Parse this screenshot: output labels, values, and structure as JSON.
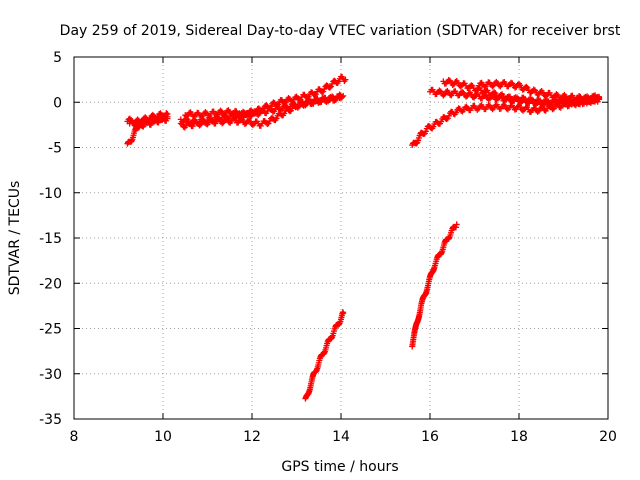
{
  "chart_data": {
    "type": "scatter",
    "title": "Day 259 of 2019, Sidereal Day-to-day VTEC variation (SDTVAR) for receiver brst",
    "xlabel": "GPS time / hours",
    "ylabel": "SDTVAR / TECUs",
    "xlim": [
      8,
      20
    ],
    "ylim": [
      -35,
      5
    ],
    "xticks": [
      8,
      10,
      12,
      14,
      16,
      18,
      20
    ],
    "yticks": [
      5,
      0,
      -5,
      -10,
      -15,
      -20,
      -25,
      -30,
      -35
    ],
    "grid": true,
    "marker": "+",
    "color": "#ff0000",
    "series": [
      {
        "points": [
          [
            9.2,
            -4.8
          ],
          [
            9.3,
            -4.0
          ],
          [
            9.4,
            -3.0
          ],
          [
            9.5,
            -2.2
          ],
          [
            9.7,
            -2.0
          ],
          [
            9.9,
            -1.8
          ],
          [
            10.1,
            -1.6
          ]
        ]
      },
      {
        "points": [
          [
            9.2,
            -2.0
          ],
          [
            9.4,
            -2.2
          ],
          [
            9.6,
            -1.9
          ],
          [
            9.8,
            -1.6
          ],
          [
            10.0,
            -1.4
          ],
          [
            10.1,
            -1.3
          ]
        ]
      },
      {
        "points": [
          [
            9.25,
            -2.3
          ],
          [
            9.5,
            -2.5
          ],
          [
            9.7,
            -2.3
          ],
          [
            9.9,
            -2.0
          ],
          [
            10.1,
            -1.8
          ]
        ]
      },
      {
        "points": [
          [
            10.4,
            -1.9
          ],
          [
            10.7,
            -2.2
          ],
          [
            11.0,
            -2.0
          ],
          [
            11.3,
            -1.7
          ],
          [
            11.6,
            -1.5
          ],
          [
            11.9,
            -1.4
          ],
          [
            12.2,
            -1.1
          ],
          [
            12.5,
            -0.8
          ],
          [
            12.8,
            -0.5
          ],
          [
            13.1,
            -0.2
          ],
          [
            13.4,
            0.1
          ],
          [
            13.7,
            0.3
          ],
          [
            14.0,
            0.5
          ]
        ]
      },
      {
        "points": [
          [
            10.4,
            -2.6
          ],
          [
            10.7,
            -2.4
          ],
          [
            11.0,
            -2.2
          ],
          [
            11.3,
            -2.1
          ],
          [
            11.6,
            -2.0
          ],
          [
            11.9,
            -2.2
          ],
          [
            12.2,
            -2.4
          ],
          [
            12.4,
            -2.1
          ],
          [
            12.6,
            -1.5
          ],
          [
            12.8,
            -0.9
          ],
          [
            13.0,
            -0.4
          ],
          [
            13.2,
            -0.1
          ],
          [
            13.5,
            0.2
          ],
          [
            13.8,
            0.4
          ],
          [
            14.05,
            0.7
          ]
        ]
      },
      {
        "points": [
          [
            10.5,
            -1.3
          ],
          [
            10.8,
            -1.4
          ],
          [
            11.2,
            -1.2
          ],
          [
            11.5,
            -1.1
          ],
          [
            11.8,
            -1.3
          ],
          [
            12.1,
            -1.0
          ],
          [
            12.4,
            -0.4
          ],
          [
            12.7,
            0.1
          ],
          [
            13.0,
            0.4
          ],
          [
            13.3,
            0.8
          ],
          [
            13.6,
            1.4
          ],
          [
            13.8,
            2.0
          ],
          [
            14.0,
            2.6
          ],
          [
            14.1,
            2.5
          ]
        ]
      },
      {
        "points": [
          [
            13.2,
            -33.0
          ],
          [
            13.3,
            -31.5
          ],
          [
            13.4,
            -30.0
          ],
          [
            13.5,
            -28.8
          ],
          [
            13.6,
            -27.7
          ],
          [
            13.7,
            -26.7
          ],
          [
            13.8,
            -25.7
          ],
          [
            13.9,
            -24.8
          ],
          [
            14.0,
            -23.9
          ],
          [
            14.05,
            -23.3
          ]
        ]
      },
      {
        "points": [
          [
            15.6,
            -4.9
          ],
          [
            15.7,
            -4.3
          ],
          [
            15.8,
            -3.6
          ],
          [
            15.95,
            -2.9
          ],
          [
            16.1,
            -2.5
          ],
          [
            16.3,
            -1.9
          ],
          [
            16.5,
            -1.2
          ],
          [
            16.7,
            -0.8
          ],
          [
            17.0,
            -0.6
          ],
          [
            17.5,
            -0.5
          ],
          [
            18.0,
            -0.6
          ],
          [
            18.3,
            -0.9
          ],
          [
            18.6,
            -0.7
          ],
          [
            19.0,
            -0.3
          ],
          [
            19.4,
            0.0
          ],
          [
            19.8,
            0.3
          ]
        ]
      },
      {
        "points": [
          [
            15.6,
            -26.8
          ],
          [
            15.7,
            -24.5
          ],
          [
            15.8,
            -22.5
          ],
          [
            15.9,
            -21.0
          ],
          [
            16.0,
            -19.5
          ],
          [
            16.1,
            -18.0
          ],
          [
            16.2,
            -17.0
          ],
          [
            16.3,
            -16.0
          ],
          [
            16.4,
            -15.0
          ],
          [
            16.5,
            -14.2
          ],
          [
            16.6,
            -13.5
          ]
        ]
      },
      {
        "points": [
          [
            16.0,
            1.2
          ],
          [
            16.3,
            1.0
          ],
          [
            16.6,
            1.0
          ],
          [
            16.9,
            0.8
          ],
          [
            17.2,
            0.6
          ],
          [
            17.5,
            0.5
          ],
          [
            17.8,
            0.3
          ],
          [
            18.1,
            0.3
          ],
          [
            18.5,
            0.0
          ],
          [
            19.0,
            0.0
          ],
          [
            19.4,
            0.0
          ],
          [
            19.8,
            0.4
          ]
        ]
      },
      {
        "points": [
          [
            16.3,
            2.3
          ],
          [
            16.6,
            2.1
          ],
          [
            16.9,
            1.7
          ],
          [
            17.2,
            1.2
          ],
          [
            17.5,
            0.8
          ],
          [
            17.8,
            0.4
          ],
          [
            18.2,
            0.1
          ],
          [
            18.6,
            -0.1
          ],
          [
            19.0,
            0.2
          ],
          [
            19.4,
            0.3
          ],
          [
            19.8,
            0.5
          ]
        ]
      },
      {
        "points": [
          [
            17.1,
            1.9
          ],
          [
            17.4,
            2.0
          ],
          [
            17.7,
            2.0
          ],
          [
            18.0,
            1.8
          ],
          [
            18.3,
            1.2
          ],
          [
            18.6,
            0.9
          ],
          [
            18.9,
            0.6
          ],
          [
            19.2,
            0.5
          ],
          [
            19.5,
            0.4
          ],
          [
            19.8,
            0.6
          ]
        ]
      }
    ]
  }
}
